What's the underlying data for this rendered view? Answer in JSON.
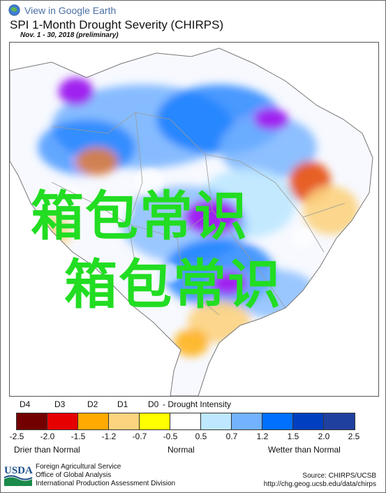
{
  "header": {
    "google_earth_link": "View in Google Earth",
    "title": "SPI 1-Month Drought Severity (CHIRPS)",
    "subtitle": "Nov. 1 - 30, 2018 (preliminary)"
  },
  "overlay": {
    "line1": "箱包常识",
    "line2": "箱包常识",
    "color": "#22dd22"
  },
  "legend": {
    "categories": [
      "D4",
      "D3",
      "D2",
      "D1",
      "D0",
      "- Drought Intensity"
    ],
    "colors": [
      "#730000",
      "#e60000",
      "#ffaa00",
      "#fcd37f",
      "#ffff00",
      "#ffffff",
      "#bee8ff",
      "#73b2ff",
      "#0070ff",
      "#0040c0",
      "#2040a0",
      "#a020f0"
    ],
    "ticks": [
      "-2.5",
      "-2.0",
      "-1.5",
      "-1.2",
      "-0.7",
      "-0.5",
      "0.5",
      "0.7",
      "1.2",
      "1.5",
      "2.0",
      "2.5"
    ],
    "dry_label": "Drier than Normal",
    "normal_label": "Normal",
    "wet_label": "Wetter than Normal"
  },
  "footer": {
    "usda_logo": "USDA",
    "agency_line1": "Foreign Agricultural Service",
    "agency_line2": "Office of Global Analysis",
    "agency_line3": "International Production Assessment Division",
    "source_line1": "Source: CHIRPS/UCSB",
    "source_line2": "http://chg.geog.ucsb.edu/data/chirps"
  }
}
